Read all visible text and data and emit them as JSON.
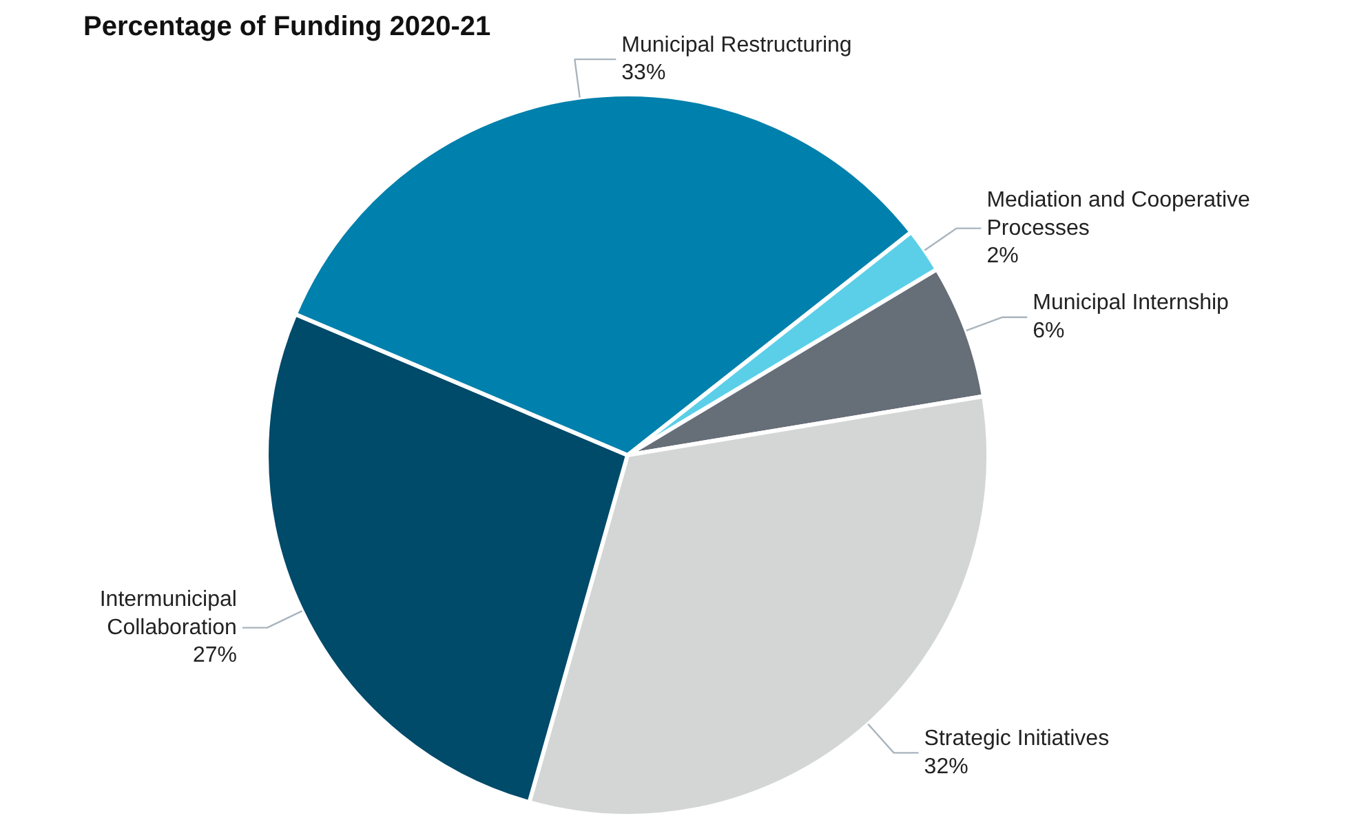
{
  "chart_data": {
    "type": "pie",
    "title": "Percentage of Funding 2020-21",
    "categories": [
      "Mediation and Cooperative Processes",
      "Municipal Internship",
      "Strategic Initiatives",
      "Intermunicipal Collaboration",
      "Municipal Restructuring"
    ],
    "values": [
      2,
      6,
      32,
      27,
      33
    ],
    "value_labels": [
      "2%",
      "6%",
      "32%",
      "27%",
      "33%"
    ],
    "colors": [
      "#5bcfe8",
      "#666e78",
      "#d4d6d6",
      "#004a6a",
      "#0080ac"
    ]
  }
}
